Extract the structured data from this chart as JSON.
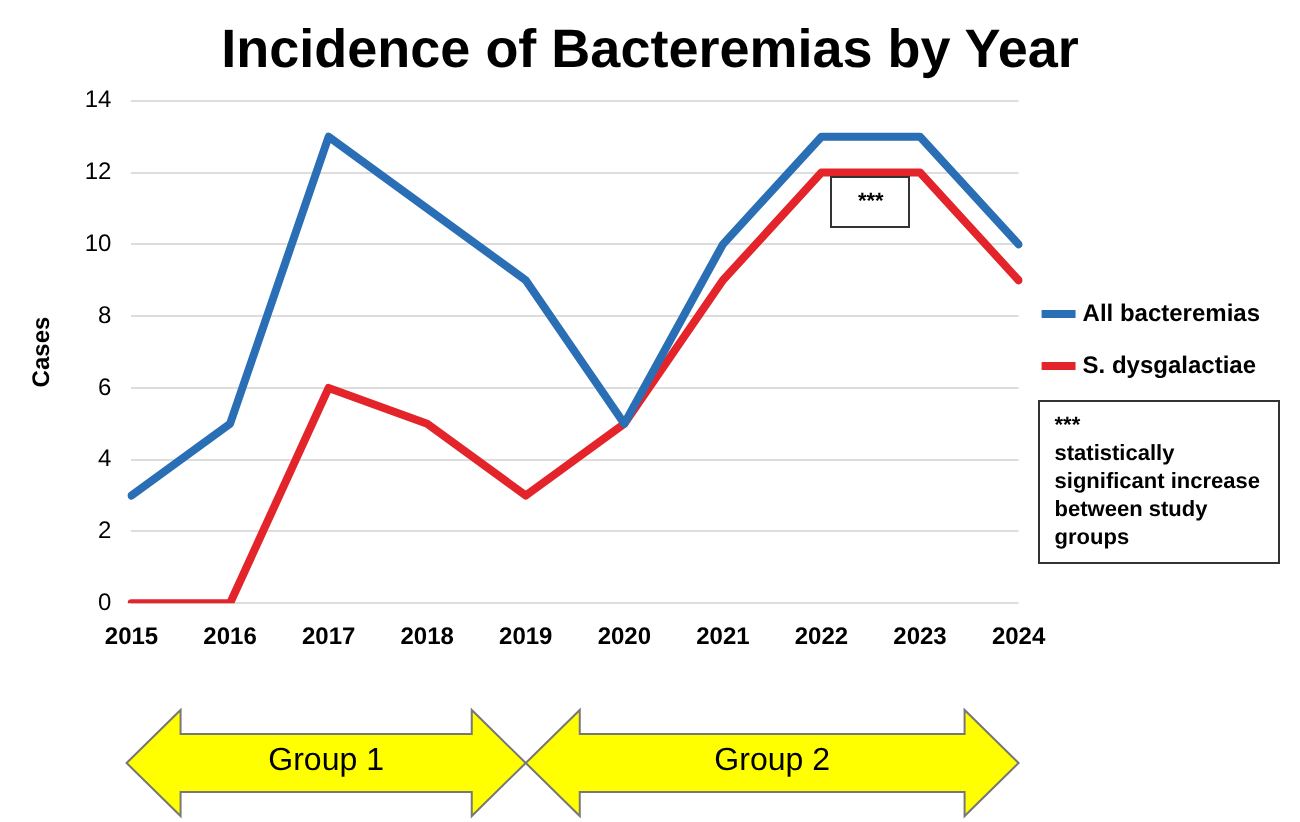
{
  "chart_data": {
    "type": "line",
    "title": "Incidence of Bacteremias by Year",
    "ylabel": "Cases",
    "categories": [
      "2015",
      "2016",
      "2017",
      "2018",
      "2019",
      "2020",
      "2021",
      "2022",
      "2023",
      "2024"
    ],
    "series": [
      {
        "name": "All bacteremias",
        "color": "#2a6fb5",
        "values": [
          3,
          5,
          13,
          11,
          9,
          5,
          10,
          13,
          13,
          10
        ]
      },
      {
        "name": "S. dysgalactiae",
        "color": "#e3242b",
        "values": [
          0,
          0,
          6,
          5,
          3,
          5,
          9,
          12,
          12,
          9
        ]
      }
    ],
    "ylim": [
      0,
      14
    ],
    "yticks": [
      0,
      2,
      4,
      6,
      8,
      10,
      12,
      14
    ],
    "grid": "y",
    "legend": "right",
    "marker": "none",
    "line_style": "solid",
    "annotations": [
      "***",
      "***\nstatistically significant increase between study groups",
      "Group 1",
      "Group 2"
    ]
  }
}
